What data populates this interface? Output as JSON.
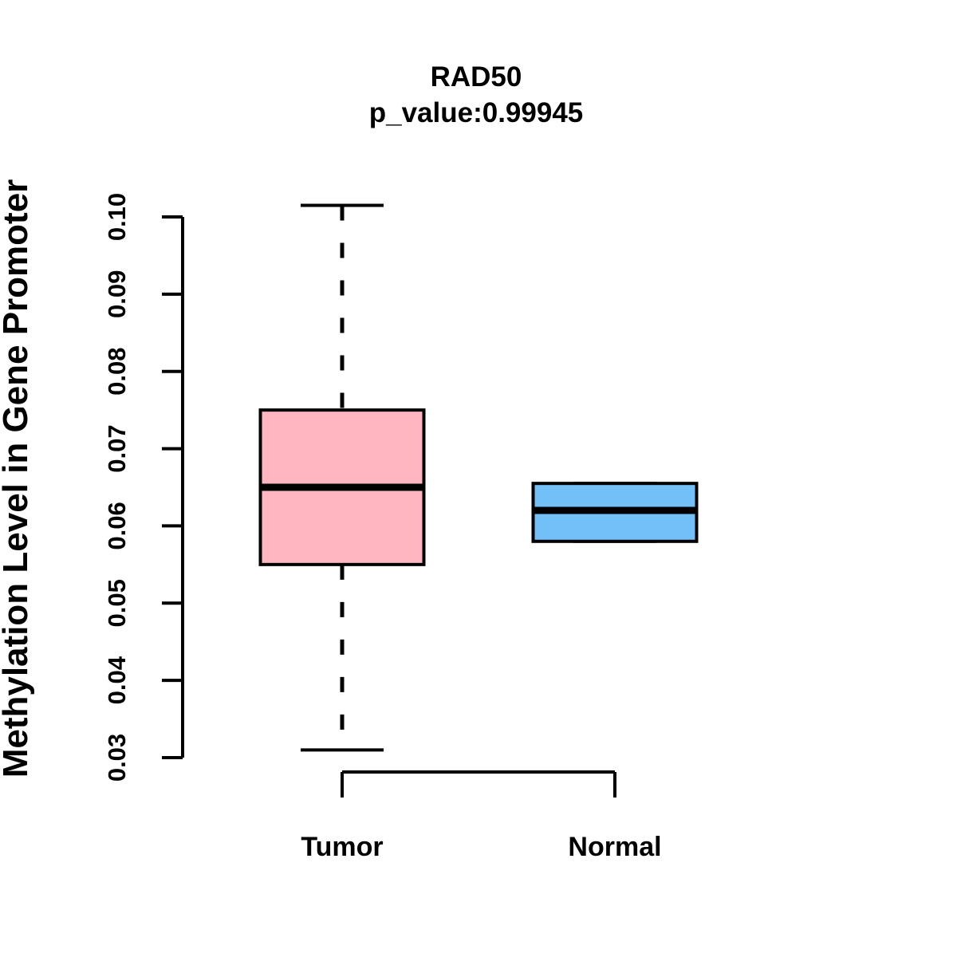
{
  "chart_data": {
    "type": "boxplot",
    "title": "RAD50",
    "subtitle": "p_value:0.99945",
    "ylabel": "Methylation Level in Gene Promoter",
    "xlabel": "",
    "categories": [
      "Tumor",
      "Normal"
    ],
    "series": [
      {
        "name": "Tumor",
        "lower_whisker": 0.031,
        "q1": 0.055,
        "median": 0.065,
        "q3": 0.075,
        "upper_whisker": 0.1015,
        "box_color": "#FFB6C1"
      },
      {
        "name": "Normal",
        "lower_whisker": 0.058,
        "q1": 0.058,
        "median": 0.062,
        "q3": 0.0655,
        "upper_whisker": 0.0655,
        "box_color": "#73BFF7"
      }
    ],
    "yticks": [
      "0.03",
      "0.04",
      "0.05",
      "0.06",
      "0.07",
      "0.08",
      "0.09",
      "0.10"
    ],
    "ylim": [
      0.0285,
      0.1035
    ],
    "grid": false,
    "legend_position": "none",
    "colors": {
      "box_border": "#000000",
      "median_line": "#000000",
      "axis": "#000000",
      "text": "#000000",
      "background": "#FFFFFF"
    }
  }
}
